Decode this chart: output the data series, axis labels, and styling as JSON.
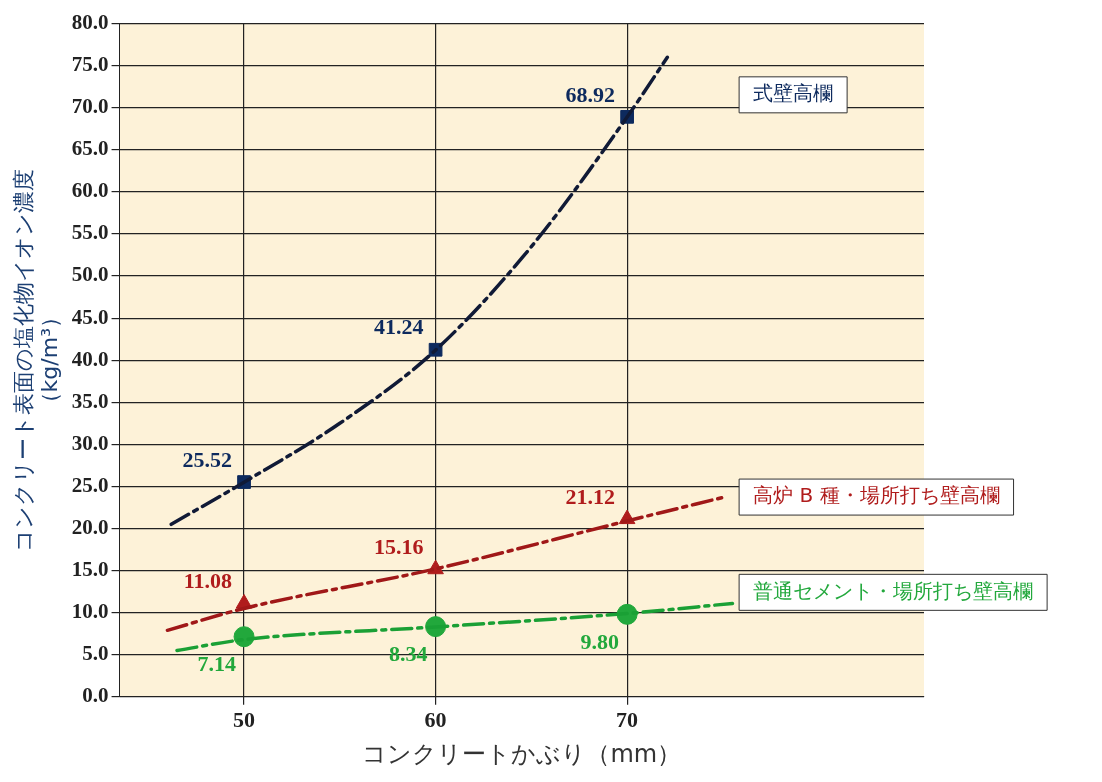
{
  "chart_data": {
    "type": "scatter",
    "xlabel": "コンクリートかぶり（mm）",
    "ylabel": "コンクリート表面の塩化物イオン濃度（kg/m³）",
    "xlim": [
      43.5,
      85.5
    ],
    "xticks": [
      50,
      60,
      70
    ],
    "ylim": [
      0,
      80
    ],
    "yticks": [
      {
        "value": 0,
        "label": "0.0"
      },
      {
        "value": 5,
        "label": "5.0"
      },
      {
        "value": 10,
        "label": "10.0"
      },
      {
        "value": 15,
        "label": "15.0"
      },
      {
        "value": 20,
        "label": "20.0"
      },
      {
        "value": 25,
        "label": "25.0"
      },
      {
        "value": 30,
        "label": "30.0"
      },
      {
        "value": 35,
        "label": "35.0"
      },
      {
        "value": 40,
        "label": "40.0"
      },
      {
        "value": 45,
        "label": "45.0"
      },
      {
        "value": 50,
        "label": "50.0"
      },
      {
        "value": 55,
        "label": "55.0"
      },
      {
        "value": 60,
        "label": "60.0"
      },
      {
        "value": 65,
        "label": "65.0"
      },
      {
        "value": 70,
        "label": "70.0"
      },
      {
        "value": 75,
        "label": "75.0"
      },
      {
        "value": 80,
        "label": "80.0"
      }
    ],
    "grid": true,
    "legend": false,
    "series": [
      {
        "type": "line",
        "color": "#101a36",
        "line_style": "dashed",
        "marker": "none",
        "x": [
          46.2,
          50,
          55,
          60,
          65,
          70,
          72.1
        ],
        "values": [
          20.5,
          25.5,
          32.5,
          41.2,
          53.5,
          68.9,
          76.0
        ]
      },
      {
        "type": "line",
        "color": "#a01818",
        "line_style": "dashed",
        "marker": "none",
        "x": [
          46.0,
          50,
          60,
          70,
          75.2
        ],
        "values": [
          7.9,
          10.5,
          15.2,
          20.9,
          23.8
        ]
      },
      {
        "type": "line",
        "color": "#1aa035",
        "line_style": "dashed",
        "marker": "none",
        "x": [
          46.5,
          50,
          60,
          70,
          75.5
        ],
        "values": [
          5.5,
          6.8,
          8.3,
          9.9,
          11.1
        ]
      },
      {
        "name": "式壁高欄",
        "color": "#0d2a5e",
        "marker": "square",
        "x": [
          50,
          60,
          70
        ],
        "values": [
          25.52,
          41.24,
          68.92
        ],
        "value_labels": [
          "25.52",
          "41.24",
          "68.92"
        ]
      },
      {
        "name": "高炉 B 種・場所打ち壁高欄",
        "color": "#b01c1c",
        "marker": "triangle",
        "x": [
          50,
          60,
          70
        ],
        "values": [
          11.08,
          15.16,
          21.12
        ],
        "value_labels": [
          "11.08",
          "15.16",
          "21.12"
        ]
      },
      {
        "name": "普通セメント・場所打ち壁高欄",
        "color": "#22a83c",
        "marker": "circle",
        "x": [
          50,
          60,
          70
        ],
        "values": [
          7.14,
          8.34,
          9.8
        ],
        "value_labels": [
          "7.14",
          "8.34",
          "9.80"
        ]
      }
    ]
  }
}
